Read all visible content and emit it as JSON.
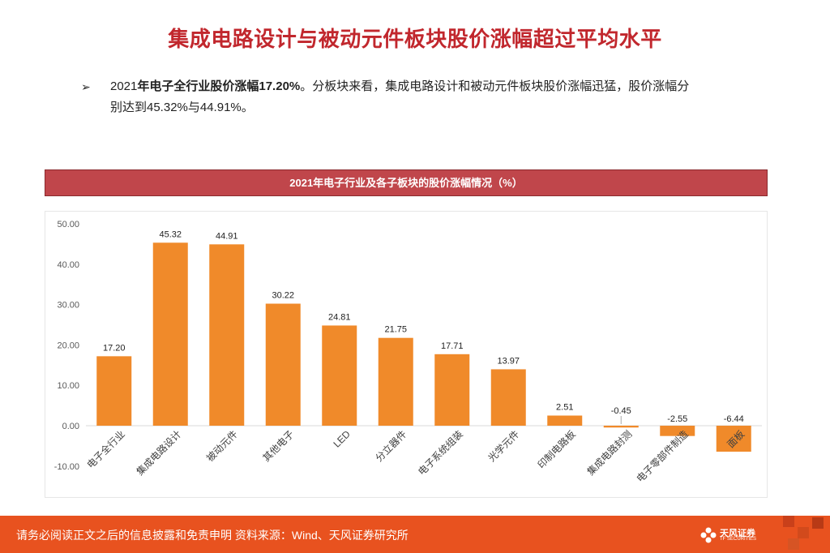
{
  "page": {
    "title": "集成电路设计与被动元件板块股价涨幅超过平均水平",
    "bullet": {
      "marker": "➢",
      "year": "2021",
      "bold_part": "年电子全行业股价涨幅17.20%",
      "rest_line1": "。分板块来看，集成电路设计和被动元件板块股价涨幅迅猛，股价涨幅分",
      "rest_line2": "别达到45.32%与44.91%。"
    },
    "footer": {
      "note": "请务必阅读正文之后的信息披露和免责申明  资料来源：Wind、天风证券研究所",
      "logo_name": "天风证券",
      "logo_sub": "TF SECURITIES"
    },
    "colors": {
      "bar": "#f08a2a",
      "title": "#c1272d",
      "footer": "#e8521f",
      "chart_header": "#c0464b"
    }
  },
  "chart_data": {
    "type": "bar",
    "title": "2021年电子行业及各子板块的股价涨幅情况（%）",
    "categories": [
      "电子全行业",
      "集成电路设计",
      "被动元件",
      "其他电子",
      "LED",
      "分立器件",
      "电子系统组装",
      "光学元件",
      "印制电路板",
      "集成电路封测",
      "电子零部件制造",
      "面板"
    ],
    "values": [
      17.2,
      45.32,
      44.91,
      30.22,
      24.81,
      21.75,
      17.71,
      13.97,
      2.51,
      -0.45,
      -2.55,
      -6.44
    ],
    "value_labels": [
      "17.20",
      "45.32",
      "44.91",
      "30.22",
      "24.81",
      "21.75",
      "17.71",
      "13.97",
      "2.51",
      "-0.45",
      "-2.55",
      "-6.44"
    ],
    "ylim": [
      -10,
      50
    ],
    "yticks": [
      -10,
      0,
      10,
      20,
      30,
      40,
      50
    ],
    "ytick_labels": [
      "-10.00",
      "0.00",
      "10.00",
      "20.00",
      "30.00",
      "40.00",
      "50.00"
    ],
    "grid": false,
    "legend": "none"
  }
}
